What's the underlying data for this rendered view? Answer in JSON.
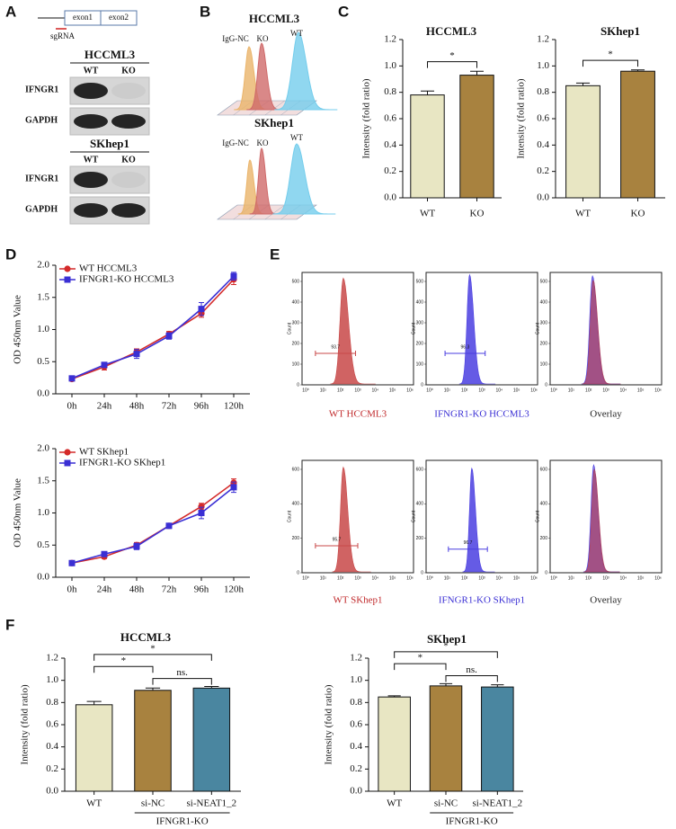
{
  "panel_labels": [
    "A",
    "B",
    "C",
    "D",
    "E",
    "F"
  ],
  "gene_diagram": {
    "exons": [
      "exon1",
      "exon2"
    ],
    "guide": "sgRNA"
  },
  "blots": [
    {
      "cell_line": "HCCML3",
      "lanes": [
        "WT",
        "KO"
      ],
      "rows": [
        "IFNGR1",
        "GAPDH"
      ]
    },
    {
      "cell_line": "SKhep1",
      "lanes": [
        "WT",
        "KO"
      ],
      "rows": [
        "IFNGR1",
        "GAPDH"
      ]
    }
  ],
  "flow_stacks": [
    {
      "cell_line": "HCCML3",
      "labels": [
        "IgG-NC",
        "KO",
        "WT"
      ],
      "colors": [
        "#eab46a",
        "#cf6a6a",
        "#74cdec"
      ]
    },
    {
      "cell_line": "SKhep1",
      "labels": [
        "IgG-NC",
        "KO",
        "WT"
      ],
      "colors": [
        "#eab46a",
        "#cf6a6a",
        "#74cdec"
      ]
    }
  ],
  "flow_panels": {
    "y_axis_label": "Count",
    "xticks": [
      "10⁰",
      "10¹",
      "10²",
      "10³",
      "10⁴",
      "10⁵",
      "10⁶"
    ],
    "rows": [
      {
        "yticks": [
          0,
          100,
          200,
          300,
          400,
          500
        ],
        "panels": [
          {
            "caption": "WT HCCML3",
            "gate": "93.7",
            "colors": [
              "#c84848"
            ],
            "caption_color": "#c0282a"
          },
          {
            "caption": "IFNGR1-KO HCCML3",
            "gate": "96.3",
            "colors": [
              "#4a3ee0"
            ],
            "caption_color": "#3a2fd4"
          },
          {
            "caption": "Overlay",
            "colors": [
              "#4a3ee0",
              "#b0405a"
            ],
            "caption_color": "#222222"
          }
        ]
      },
      {
        "yticks": [
          0,
          200,
          400,
          600
        ],
        "panels": [
          {
            "caption": "WT SKhep1",
            "gate": "95.7",
            "colors": [
              "#c84848"
            ],
            "caption_color": "#c0282a"
          },
          {
            "caption": "IFNGR1-KO SKhep1",
            "gate": "96.7",
            "colors": [
              "#4a3ee0"
            ],
            "caption_color": "#3a2fd4"
          },
          {
            "caption": "Overlay",
            "colors": [
              "#4a3ee0",
              "#b0405a"
            ],
            "caption_color": "#222222"
          }
        ]
      }
    ]
  },
  "chart_data": [
    {
      "type": "bar",
      "title": "HCCML3",
      "y_label": "Intensity (fold ratio)",
      "categories": [
        "WT",
        "KO"
      ],
      "values": [
        0.78,
        0.93
      ],
      "errors": [
        0.03,
        0.03
      ],
      "colors": [
        "#e8e6c3",
        "#a8823f"
      ],
      "ylim": [
        0,
        1.2
      ],
      "yticks": [
        {
          "value": 0,
          "label": "0.0"
        },
        {
          "value": 0.2,
          "label": "0.2"
        },
        {
          "value": 0.4,
          "label": "0.4"
        },
        {
          "value": 0.6,
          "label": "0.6"
        },
        {
          "value": 0.8,
          "label": "0.8"
        },
        {
          "value": 1,
          "label": "1.0"
        },
        {
          "value": 1.2,
          "label": "1.2"
        }
      ],
      "significance": [
        {
          "label": "*",
          "between": [
            "WT",
            "KO"
          ]
        }
      ]
    },
    {
      "type": "bar",
      "title": "SKhep1",
      "y_label": "Intensity (fold ratio)",
      "categories": [
        "WT",
        "KO"
      ],
      "values": [
        0.85,
        0.96
      ],
      "errors": [
        0.02,
        0.01
      ],
      "colors": [
        "#e8e6c3",
        "#a8823f"
      ],
      "ylim": [
        0,
        1.2
      ],
      "yticks": [
        {
          "value": 0,
          "label": "0.0"
        },
        {
          "value": 0.2,
          "label": "0.2"
        },
        {
          "value": 0.4,
          "label": "0.4"
        },
        {
          "value": 0.6,
          "label": "0.6"
        },
        {
          "value": 0.8,
          "label": "0.8"
        },
        {
          "value": 1,
          "label": "1.0"
        },
        {
          "value": 1.2,
          "label": "1.2"
        }
      ],
      "significance": [
        {
          "label": "*",
          "between": [
            "WT",
            "KO"
          ]
        }
      ]
    },
    {
      "type": "line",
      "y_label": "OD 450nm Value",
      "categories": [
        "0h",
        "24h",
        "48h",
        "72h",
        "96h",
        "120h"
      ],
      "series": [
        {
          "name": "WT HCCML3",
          "color": "#d42a2a",
          "marker": "circle",
          "values": [
            0.23,
            0.42,
            0.65,
            0.93,
            1.25,
            1.78
          ],
          "errors": [
            0.02,
            0.05,
            0.05,
            0.04,
            0.06,
            0.08
          ]
        },
        {
          "name": "IFNGR1-KO HCCML3",
          "color": "#3a2fd4",
          "marker": "square",
          "values": [
            0.24,
            0.45,
            0.62,
            0.9,
            1.32,
            1.83
          ],
          "errors": [
            0.02,
            0.04,
            0.07,
            0.05,
            0.1,
            0.06
          ]
        }
      ],
      "ylim": [
        0,
        2
      ],
      "yticks": [
        {
          "value": 0,
          "label": "0.0"
        },
        {
          "value": 0.5,
          "label": "0.5"
        },
        {
          "value": 1,
          "label": "1.0"
        },
        {
          "value": 1.5,
          "label": "1.5"
        },
        {
          "value": 2,
          "label": "2.0"
        }
      ]
    },
    {
      "type": "line",
      "y_label": "OD 450nm Value",
      "categories": [
        "0h",
        "24h",
        "48h",
        "72h",
        "96h",
        "120h"
      ],
      "series": [
        {
          "name": "WT SKhep1",
          "color": "#d42a2a",
          "marker": "circle",
          "values": [
            0.22,
            0.32,
            0.5,
            0.8,
            1.1,
            1.47
          ],
          "errors": [
            0.02,
            0.03,
            0.04,
            0.04,
            0.05,
            0.06
          ]
        },
        {
          "name": "IFNGR1-KO SKhep1",
          "color": "#3a2fd4",
          "marker": "square",
          "values": [
            0.22,
            0.36,
            0.48,
            0.8,
            1.0,
            1.4
          ],
          "errors": [
            0.02,
            0.03,
            0.05,
            0.04,
            0.09,
            0.08
          ]
        }
      ],
      "ylim": [
        0,
        2
      ],
      "yticks": [
        {
          "value": 0,
          "label": "0.0"
        },
        {
          "value": 0.5,
          "label": "0.5"
        },
        {
          "value": 1,
          "label": "1.0"
        },
        {
          "value": 1.5,
          "label": "1.5"
        },
        {
          "value": 2,
          "label": "2.0"
        }
      ]
    },
    {
      "type": "bar",
      "title": "HCCML3",
      "y_label": "Intensity (fold ratio)",
      "categories": [
        "WT",
        "si-NC",
        "si-NEAT1_2"
      ],
      "values": [
        0.78,
        0.91,
        0.93
      ],
      "errors": [
        0.03,
        0.02,
        0.015
      ],
      "colors": [
        "#e8e6c3",
        "#a8823f",
        "#4a86a0"
      ],
      "ylim": [
        0,
        1.2
      ],
      "yticks": [
        {
          "value": 0,
          "label": "0.0"
        },
        {
          "value": 0.2,
          "label": "0.2"
        },
        {
          "value": 0.4,
          "label": "0.4"
        },
        {
          "value": 0.6,
          "label": "0.6"
        },
        {
          "value": 0.8,
          "label": "0.8"
        },
        {
          "value": 1,
          "label": "1.0"
        },
        {
          "value": 1.2,
          "label": "1.2"
        }
      ],
      "significance": [
        {
          "label": "ns.",
          "between": [
            "si-NC",
            "si-NEAT1_2"
          ]
        },
        {
          "label": "*",
          "between": [
            "WT",
            "si-NC"
          ]
        },
        {
          "label": "*",
          "between": [
            "WT",
            "si-NEAT1_2"
          ]
        }
      ],
      "group": {
        "label": "IFNGR1-KO",
        "members": [
          "si-NC",
          "si-NEAT1_2"
        ]
      }
    },
    {
      "type": "bar",
      "title": "SKhep1",
      "y_label": "Intensity (fold ratio)",
      "categories": [
        "WT",
        "si-NC",
        "si-NEAT1_2"
      ],
      "values": [
        0.85,
        0.95,
        0.94
      ],
      "errors": [
        0.01,
        0.02,
        0.02
      ],
      "colors": [
        "#e8e6c3",
        "#a8823f",
        "#4a86a0"
      ],
      "ylim": [
        0,
        1.2
      ],
      "yticks": [
        {
          "value": 0,
          "label": "0.0"
        },
        {
          "value": 0.2,
          "label": "0.2"
        },
        {
          "value": 0.4,
          "label": "0.4"
        },
        {
          "value": 0.6,
          "label": "0.6"
        },
        {
          "value": 0.8,
          "label": "0.8"
        },
        {
          "value": 1,
          "label": "1.0"
        },
        {
          "value": 1.2,
          "label": "1.2"
        }
      ],
      "significance": [
        {
          "label": "ns.",
          "between": [
            "si-NC",
            "si-NEAT1_2"
          ]
        },
        {
          "label": "*",
          "between": [
            "WT",
            "si-NC"
          ]
        },
        {
          "label": "*",
          "between": [
            "WT",
            "si-NEAT1_2"
          ]
        }
      ],
      "group": {
        "label": "IFNGR1-KO",
        "members": [
          "si-NC",
          "si-NEAT1_2"
        ]
      }
    }
  ]
}
